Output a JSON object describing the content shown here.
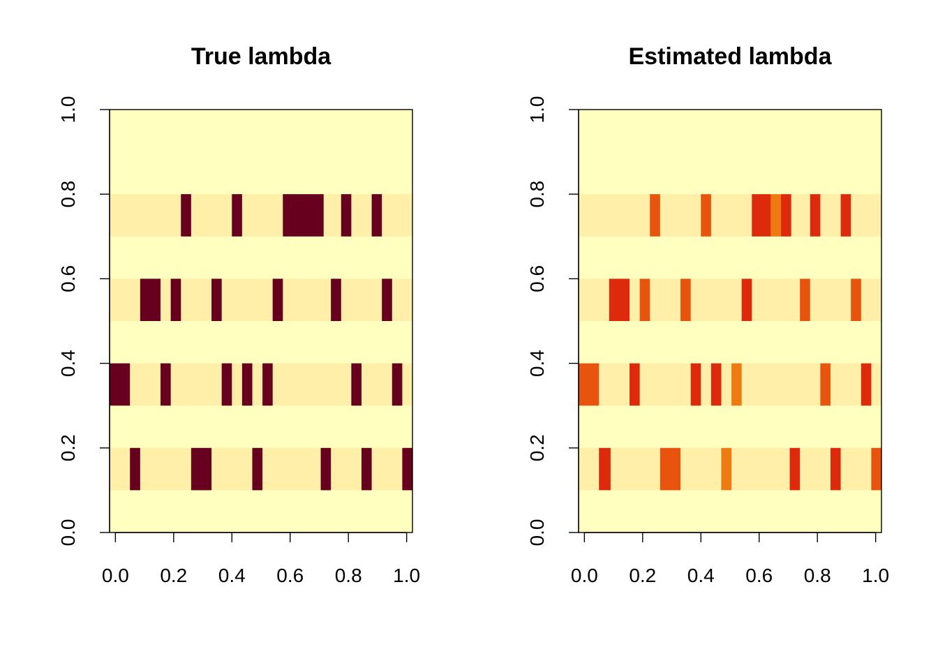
{
  "chart_data": [
    {
      "type": "heatmap",
      "title": "True lambda",
      "xlim": [
        -0.02,
        1.02
      ],
      "ylim": [
        0,
        1
      ],
      "x_ticks": [
        0.0,
        0.2,
        0.4,
        0.6,
        0.8,
        1.0
      ],
      "y_ticks": [
        0.0,
        0.2,
        0.4,
        0.6,
        0.8,
        1.0
      ],
      "x_tick_labels": [
        "0.0",
        "0.2",
        "0.4",
        "0.6",
        "0.8",
        "1.0"
      ],
      "y_tick_labels": [
        "0.0",
        "0.2",
        "0.4",
        "0.6",
        "0.8",
        "1.0"
      ],
      "grid": false,
      "background_color": "#FFFFC0",
      "rows": [
        {
          "y": [
            0.1,
            0.2
          ],
          "band_color": "#FFEFA8",
          "cells": [
            {
              "x": [
                0.05,
                0.085
              ],
              "color": "#67001F"
            },
            {
              "x": [
                0.26,
                0.33
              ],
              "color": "#67001F"
            },
            {
              "x": [
                0.47,
                0.505
              ],
              "color": "#67001F"
            },
            {
              "x": [
                0.705,
                0.74
              ],
              "color": "#67001F"
            },
            {
              "x": [
                0.845,
                0.88
              ],
              "color": "#67001F"
            },
            {
              "x": [
                0.985,
                1.02
              ],
              "color": "#67001F"
            }
          ]
        },
        {
          "y": [
            0.3,
            0.4
          ],
          "band_color": "#FFEFA8",
          "cells": [
            {
              "x": [
                -0.02,
                0.05
              ],
              "color": "#67001F"
            },
            {
              "x": [
                0.155,
                0.19
              ],
              "color": "#67001F"
            },
            {
              "x": [
                0.365,
                0.4
              ],
              "color": "#67001F"
            },
            {
              "x": [
                0.435,
                0.47
              ],
              "color": "#67001F"
            },
            {
              "x": [
                0.505,
                0.54
              ],
              "color": "#67001F"
            },
            {
              "x": [
                0.81,
                0.845
              ],
              "color": "#67001F"
            },
            {
              "x": [
                0.95,
                0.985
              ],
              "color": "#67001F"
            }
          ]
        },
        {
          "y": [
            0.5,
            0.6
          ],
          "band_color": "#FFEFA8",
          "cells": [
            {
              "x": [
                0.085,
                0.155
              ],
              "color": "#67001F"
            },
            {
              "x": [
                0.19,
                0.225
              ],
              "color": "#67001F"
            },
            {
              "x": [
                0.33,
                0.365
              ],
              "color": "#67001F"
            },
            {
              "x": [
                0.54,
                0.575
              ],
              "color": "#67001F"
            },
            {
              "x": [
                0.74,
                0.775
              ],
              "color": "#67001F"
            },
            {
              "x": [
                0.915,
                0.95
              ],
              "color": "#67001F"
            }
          ]
        },
        {
          "y": [
            0.7,
            0.8
          ],
          "band_color": "#FFEFA8",
          "cells": [
            {
              "x": [
                0.225,
                0.26
              ],
              "color": "#67001F"
            },
            {
              "x": [
                0.4,
                0.435
              ],
              "color": "#67001F"
            },
            {
              "x": [
                0.575,
                0.715
              ],
              "color": "#67001F"
            },
            {
              "x": [
                0.775,
                0.81
              ],
              "color": "#67001F"
            },
            {
              "x": [
                0.88,
                0.915
              ],
              "color": "#67001F"
            }
          ]
        }
      ]
    },
    {
      "type": "heatmap",
      "title": "Estimated lambda",
      "xlim": [
        -0.02,
        1.02
      ],
      "ylim": [
        0,
        1
      ],
      "x_ticks": [
        0.0,
        0.2,
        0.4,
        0.6,
        0.8,
        1.0
      ],
      "y_ticks": [
        0.0,
        0.2,
        0.4,
        0.6,
        0.8,
        1.0
      ],
      "x_tick_labels": [
        "0.0",
        "0.2",
        "0.4",
        "0.6",
        "0.8",
        "1.0"
      ],
      "y_tick_labels": [
        "0.0",
        "0.2",
        "0.4",
        "0.6",
        "0.8",
        "1.0"
      ],
      "grid": false,
      "background_color": "#FFFFC0",
      "rows": [
        {
          "y": [
            0.1,
            0.2
          ],
          "band_color": "#FFEFA8",
          "cells": [
            {
              "x": [
                0.05,
                0.09
              ],
              "color": "#DD2A0C"
            },
            {
              "x": [
                0.26,
                0.33
              ],
              "color": "#E8540E"
            },
            {
              "x": [
                0.47,
                0.505
              ],
              "color": "#EE7A12"
            },
            {
              "x": [
                0.705,
                0.74
              ],
              "color": "#DD2A0C"
            },
            {
              "x": [
                0.845,
                0.88
              ],
              "color": "#DD2A0C"
            },
            {
              "x": [
                0.985,
                1.02
              ],
              "color": "#E8540E"
            }
          ]
        },
        {
          "y": [
            0.3,
            0.4
          ],
          "band_color": "#FFEFA8",
          "cells": [
            {
              "x": [
                -0.02,
                0.05
              ],
              "color": "#E8540E"
            },
            {
              "x": [
                0.155,
                0.19
              ],
              "color": "#DD2A0C"
            },
            {
              "x": [
                0.365,
                0.4
              ],
              "color": "#DD2A0C"
            },
            {
              "x": [
                0.435,
                0.47
              ],
              "color": "#DD2A0C"
            },
            {
              "x": [
                0.505,
                0.54
              ],
              "color": "#EE7A12"
            },
            {
              "x": [
                0.81,
                0.845
              ],
              "color": "#E8540E"
            },
            {
              "x": [
                0.95,
                0.985
              ],
              "color": "#DD2A0C"
            }
          ]
        },
        {
          "y": [
            0.5,
            0.6
          ],
          "band_color": "#FFEFA8",
          "cells": [
            {
              "x": [
                0.085,
                0.155
              ],
              "color": "#DD2A0C"
            },
            {
              "x": [
                0.19,
                0.225
              ],
              "color": "#E8540E"
            },
            {
              "x": [
                0.33,
                0.365
              ],
              "color": "#E8540E"
            },
            {
              "x": [
                0.54,
                0.575
              ],
              "color": "#DD2A0C"
            },
            {
              "x": [
                0.74,
                0.775
              ],
              "color": "#E8540E"
            },
            {
              "x": [
                0.915,
                0.95
              ],
              "color": "#E8540E"
            }
          ]
        },
        {
          "y": [
            0.7,
            0.8
          ],
          "band_color": "#FFEFA8",
          "cells": [
            {
              "x": [
                0.225,
                0.26
              ],
              "color": "#E8540E"
            },
            {
              "x": [
                0.4,
                0.435
              ],
              "color": "#E8540E"
            },
            {
              "x": [
                0.575,
                0.64
              ],
              "color": "#DD2A0C"
            },
            {
              "x": [
                0.64,
                0.675
              ],
              "color": "#EE7A12"
            },
            {
              "x": [
                0.675,
                0.71
              ],
              "color": "#DD2A0C"
            },
            {
              "x": [
                0.775,
                0.81
              ],
              "color": "#DD2A0C"
            },
            {
              "x": [
                0.88,
                0.915
              ],
              "color": "#DD2A0C"
            }
          ]
        }
      ]
    }
  ]
}
